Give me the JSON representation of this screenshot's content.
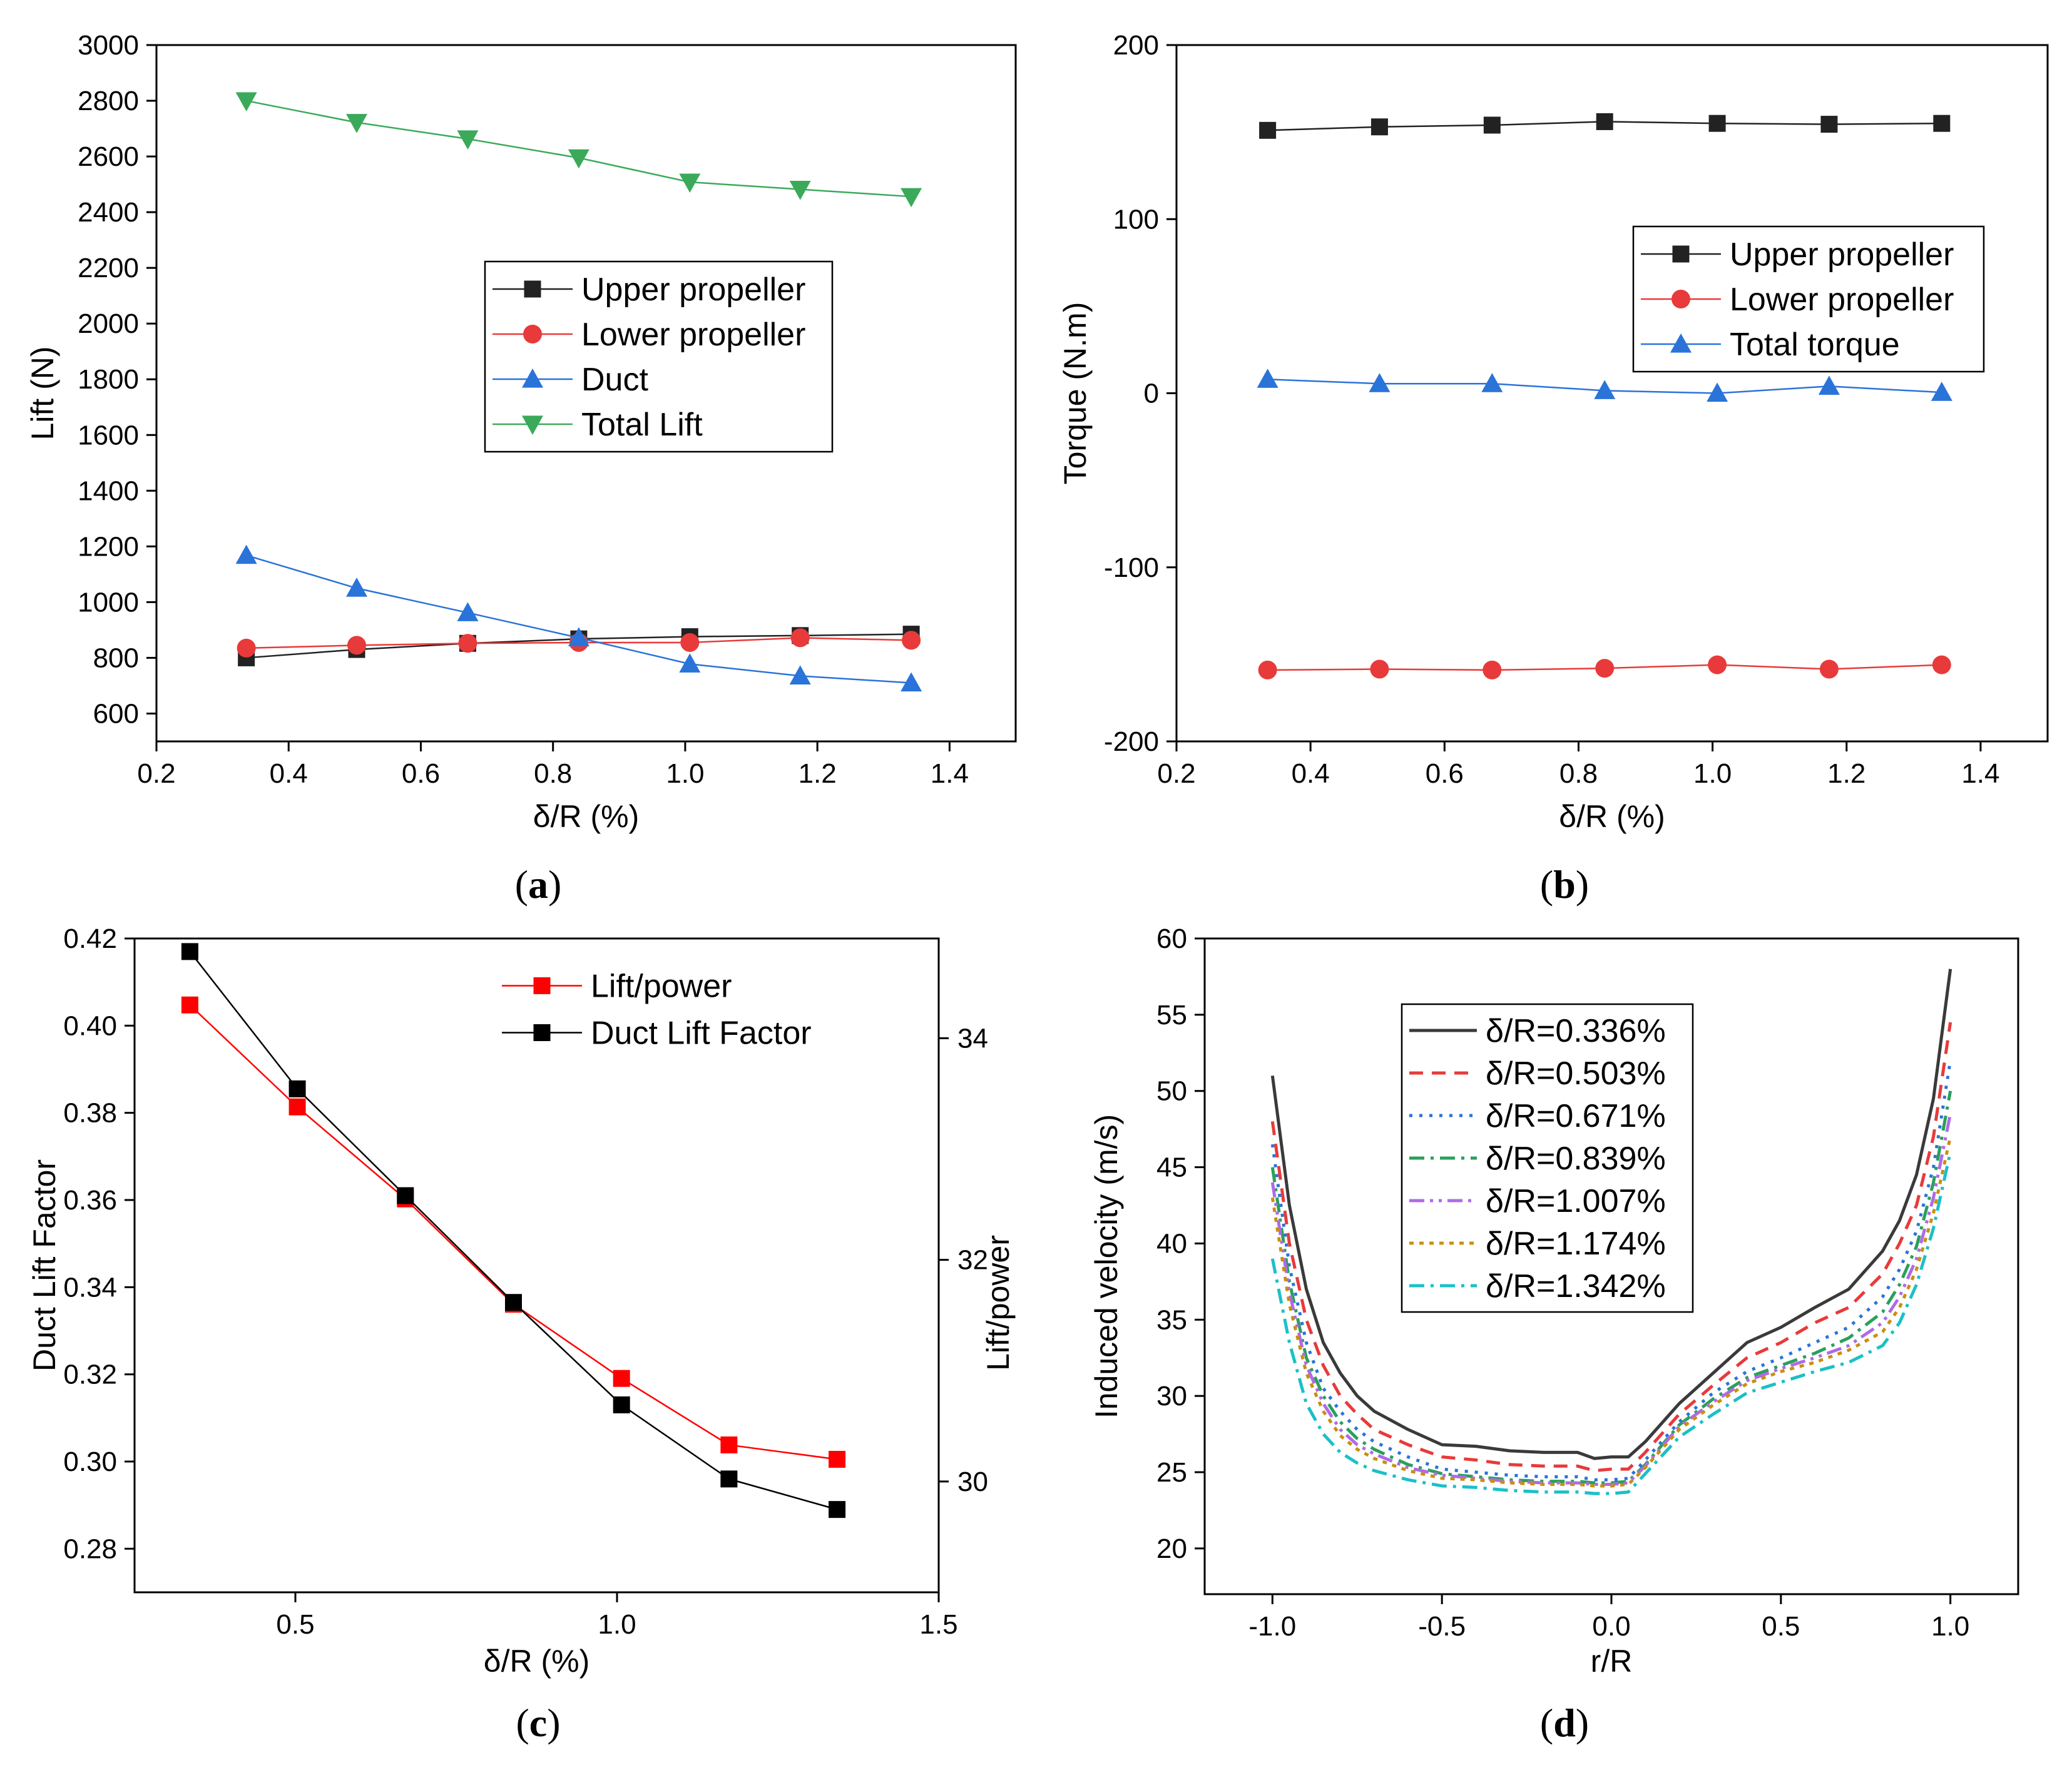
{
  "chart_data": [
    {
      "panel": "a",
      "type": "line",
      "caption": "a",
      "xlabel": "δ/R (%)",
      "ylabel": "Lift (N)",
      "xlim": [
        0.2,
        1.5
      ],
      "ylim": [
        500,
        3000
      ],
      "xticks": [
        0.2,
        0.4,
        0.6,
        0.8,
        1.0,
        1.2,
        1.4
      ],
      "xtick_labels": [
        "0.2",
        "0.4",
        "0.6",
        "0.8",
        "1.0",
        "1.2",
        "1.4"
      ],
      "yticks": [
        600,
        800,
        1000,
        1200,
        1400,
        1600,
        1800,
        2000,
        2200,
        2400,
        2600,
        2800,
        3000
      ],
      "ytick_labels": [
        "600",
        "800",
        "1000",
        "1200",
        "1400",
        "1600",
        "1800",
        "2000",
        "2200",
        "2400",
        "2600",
        "2800",
        "3000"
      ],
      "x": [
        0.336,
        0.503,
        0.671,
        0.839,
        1.007,
        1.174,
        1.342
      ],
      "legend_position": "center-right",
      "series": [
        {
          "name": "Upper propeller",
          "color": "#222222",
          "marker": "square",
          "values": [
            800,
            830,
            852,
            868,
            876,
            880,
            885
          ]
        },
        {
          "name": "Lower propeller",
          "color": "#e83a3a",
          "marker": "circle",
          "values": [
            835,
            845,
            852,
            855,
            855,
            872,
            863
          ]
        },
        {
          "name": "Duct",
          "color": "#2a73d9",
          "marker": "triangle-up",
          "values": [
            1168,
            1050,
            962,
            872,
            778,
            735,
            710
          ]
        },
        {
          "name": "Total Lift",
          "color": "#3aaa5a",
          "marker": "triangle-down",
          "values": [
            2800,
            2722,
            2663,
            2595,
            2508,
            2482,
            2456
          ]
        }
      ]
    },
    {
      "panel": "b",
      "type": "line",
      "caption": "b",
      "xlabel": "δ/R (%)",
      "ylabel": "Torque (N.m)",
      "xlim": [
        0.2,
        1.5
      ],
      "ylim": [
        -200,
        200
      ],
      "xticks": [
        0.2,
        0.4,
        0.6,
        0.8,
        1.0,
        1.2,
        1.4
      ],
      "xtick_labels": [
        "0.2",
        "0.4",
        "0.6",
        "0.8",
        "1.0",
        "1.2",
        "1.4"
      ],
      "yticks": [
        -200,
        -100,
        0,
        100,
        200
      ],
      "ytick_labels": [
        "-200",
        "-100",
        "0",
        "100",
        "200"
      ],
      "x": [
        0.336,
        0.503,
        0.671,
        0.839,
        1.007,
        1.174,
        1.342
      ],
      "legend_position": "top-right",
      "series": [
        {
          "name": "Upper propeller",
          "color": "#222222",
          "marker": "square",
          "values": [
            151,
            153,
            154,
            156,
            155,
            154.5,
            155
          ]
        },
        {
          "name": "Lower propeller",
          "color": "#e83a3a",
          "marker": "circle",
          "values": [
            -159,
            -158.5,
            -159,
            -158,
            -156,
            -158.5,
            -156
          ]
        },
        {
          "name": "Total torque",
          "color": "#2a73d9",
          "marker": "triangle-up",
          "values": [
            8,
            5.5,
            5.5,
            1.5,
            0,
            4,
            0.5
          ]
        }
      ]
    },
    {
      "panel": "c",
      "type": "line",
      "caption": "c",
      "xlabel": "δ/R (%)",
      "ylabel": "Duct Lift Factor",
      "ylabel_right": "Lift/power",
      "xlim": [
        0.25,
        1.5
      ],
      "ylim": [
        0.27,
        0.42
      ],
      "ylim_right": [
        29.0,
        34.9
      ],
      "xticks": [
        0.5,
        1.0,
        1.5
      ],
      "xtick_labels": [
        "0.5",
        "1.0",
        "1.5"
      ],
      "yticks": [
        0.28,
        0.3,
        0.32,
        0.34,
        0.36,
        0.38,
        0.4,
        0.42
      ],
      "ytick_labels": [
        "0.28",
        "0.30",
        "0.32",
        "0.34",
        "0.36",
        "0.38",
        "0.40",
        "0.42"
      ],
      "yticks_right": [
        30,
        32,
        34
      ],
      "ytick_labels_right": [
        "30",
        "32",
        "34"
      ],
      "x": [
        0.336,
        0.503,
        0.671,
        0.839,
        1.007,
        1.174,
        1.342
      ],
      "legend_position": "top-right",
      "series": [
        {
          "name": "Lift/power",
          "axis": "right",
          "color": "#ff0000",
          "marker": "square",
          "values": [
            34.3,
            33.38,
            32.55,
            31.6,
            30.93,
            30.33,
            30.2
          ]
        },
        {
          "name": "Duct Lift Factor",
          "axis": "left",
          "color": "#000000",
          "marker": "square",
          "values": [
            0.417,
            0.3855,
            0.361,
            0.3365,
            0.313,
            0.296,
            0.289
          ]
        }
      ]
    },
    {
      "panel": "d",
      "type": "line",
      "caption": "d",
      "xlabel": "r/R",
      "ylabel": "Induced velocity (m/s)",
      "xlim": [
        -1.2,
        1.2
      ],
      "ylim": [
        17,
        60
      ],
      "xticks": [
        -1.0,
        -0.5,
        0.0,
        0.5,
        1.0
      ],
      "xtick_labels": [
        "-1.0",
        "-0.5",
        "0.0",
        "0.5",
        "1.0"
      ],
      "yticks": [
        20,
        25,
        30,
        35,
        40,
        45,
        50,
        55,
        60
      ],
      "ytick_labels": [
        "20",
        "25",
        "30",
        "35",
        "40",
        "45",
        "50",
        "55",
        "60"
      ],
      "x": [
        -1.0,
        -0.95,
        -0.9,
        -0.85,
        -0.8,
        -0.75,
        -0.7,
        -0.6,
        -0.5,
        -0.4,
        -0.3,
        -0.2,
        -0.1,
        -0.05,
        0.0,
        0.05,
        0.1,
        0.2,
        0.3,
        0.4,
        0.5,
        0.6,
        0.7,
        0.8,
        0.85,
        0.9,
        0.95,
        1.0
      ],
      "legend_position": "upper-center",
      "series": [
        {
          "name": "δ/R=0.336%",
          "color": "#3a3a3a",
          "dash": "solid",
          "values": [
            51,
            42.5,
            37,
            33.5,
            31.5,
            30,
            29,
            27.8,
            26.8,
            26.7,
            26.4,
            26.3,
            26.3,
            25.9,
            26,
            26,
            27,
            29.5,
            31.5,
            33.5,
            34.5,
            35.8,
            37,
            39.5,
            41.5,
            44.5,
            49.5,
            58
          ]
        },
        {
          "name": "δ/R=0.503%",
          "color": "#e83a3a",
          "dash": "dashed",
          "values": [
            48,
            40,
            35,
            32,
            30,
            28.8,
            27.8,
            26.8,
            26,
            25.8,
            25.5,
            25.4,
            25.4,
            25.1,
            25.2,
            25.2,
            26.3,
            28.8,
            30.7,
            32.5,
            33.5,
            34.8,
            35.8,
            38,
            40,
            42.5,
            47,
            54.5
          ]
        },
        {
          "name": "δ/R=0.671%",
          "color": "#2a73d9",
          "dash": "dotted",
          "values": [
            46.5,
            38.5,
            33.5,
            30.5,
            29,
            27.8,
            27,
            26,
            25.2,
            25,
            24.8,
            24.7,
            24.7,
            24.5,
            24.5,
            24.6,
            25.8,
            28.3,
            30.2,
            31.6,
            32.5,
            33.5,
            34.5,
            36.5,
            38.3,
            40.8,
            45,
            52
          ]
        },
        {
          "name": "δ/R=0.839%",
          "color": "#2aa05a",
          "dash": "dashdot",
          "values": [
            45,
            37.5,
            32.5,
            30,
            28.3,
            27.2,
            26.5,
            25.5,
            24.9,
            24.7,
            24.5,
            24.4,
            24.4,
            24.3,
            24.3,
            24.4,
            25.5,
            28.1,
            29.8,
            31.2,
            32,
            32.8,
            33.8,
            35.5,
            37.3,
            39.8,
            44,
            50
          ]
        },
        {
          "name": "δ/R=1.007%",
          "color": "#b06ae8",
          "dash": "dashdotdot",
          "values": [
            44,
            36.8,
            32,
            29.5,
            27.8,
            26.8,
            26.2,
            25.3,
            24.8,
            24.6,
            24.4,
            24.3,
            24.3,
            24.2,
            24.2,
            24.3,
            25.4,
            28,
            29.6,
            31,
            31.8,
            32.5,
            33.3,
            34.8,
            36.5,
            39,
            43,
            48.5
          ]
        },
        {
          "name": "δ/R=1.174%",
          "color": "#c89010",
          "dash": "shortdot",
          "values": [
            43,
            36,
            31.5,
            29,
            27.4,
            26.5,
            25.9,
            25.1,
            24.6,
            24.5,
            24.3,
            24.2,
            24.2,
            24.1,
            24.1,
            24.2,
            25.3,
            27.8,
            29.4,
            30.8,
            31.6,
            32.2,
            33,
            34.2,
            35.8,
            38.3,
            42,
            47
          ]
        },
        {
          "name": "δ/R=1.342%",
          "color": "#1ac0c8",
          "dash": "dashdot",
          "values": [
            39,
            33.5,
            29.5,
            27.5,
            26.3,
            25.6,
            25.1,
            24.5,
            24.1,
            24,
            23.8,
            23.7,
            23.7,
            23.6,
            23.6,
            23.7,
            24.9,
            27.3,
            28.8,
            30.2,
            30.9,
            31.6,
            32.2,
            33.3,
            34.8,
            37.3,
            41,
            46
          ]
        }
      ]
    }
  ]
}
